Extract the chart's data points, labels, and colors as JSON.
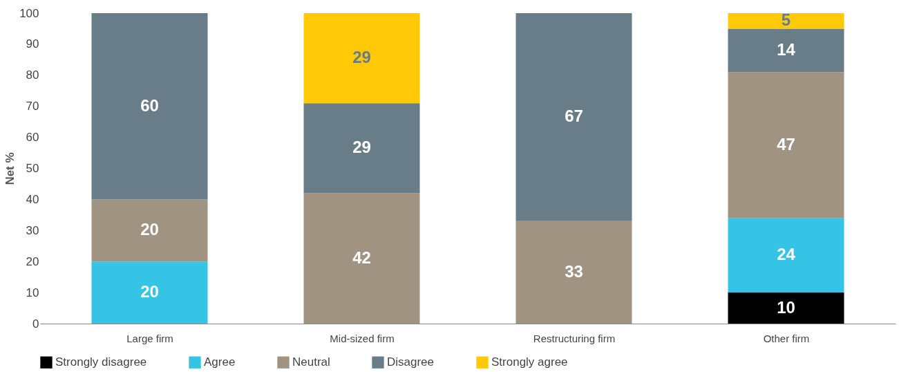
{
  "chart_data": {
    "type": "bar",
    "stacked": true,
    "ylabel": "Net %",
    "categories": [
      "Large firm",
      "Mid-sized firm",
      "Restructuring firm",
      "Other firm"
    ],
    "series": [
      {
        "name": "Strongly disagree",
        "color": "#000000",
        "values": [
          null,
          null,
          null,
          10
        ]
      },
      {
        "name": "Agree",
        "color": "#35c3e6",
        "values": [
          20,
          null,
          null,
          24
        ]
      },
      {
        "name": "Neutral",
        "color": "#a09382",
        "values": [
          20,
          42,
          33,
          47
        ]
      },
      {
        "name": "Disagree",
        "color": "#687d87",
        "values": [
          60,
          29,
          67,
          14
        ]
      },
      {
        "name": "Strongly agree",
        "color": "#ffc907",
        "values": [
          null,
          29,
          null,
          5
        ]
      }
    ],
    "ylim": [
      0,
      100
    ],
    "yticks": [
      0,
      10,
      20,
      30,
      40,
      50,
      60,
      70,
      80,
      90,
      100
    ],
    "grid": false,
    "legend": "bottom",
    "data_labels": true
  }
}
